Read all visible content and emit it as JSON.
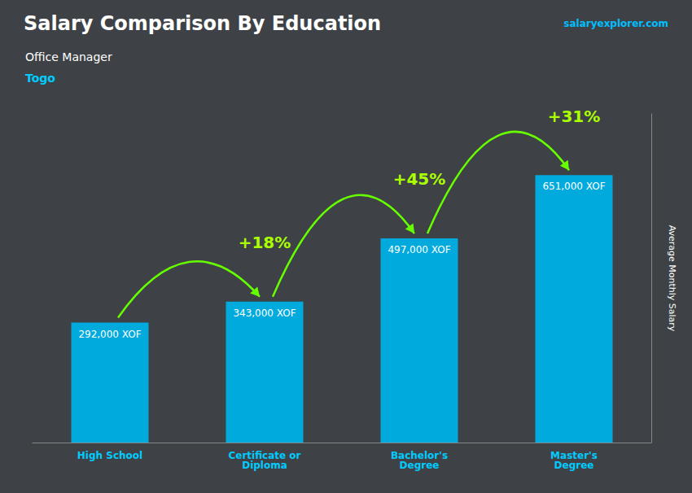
{
  "chart_data": {
    "type": "bar",
    "title": "Salary Comparison By Education",
    "subtitle": [
      "Office Manager",
      "Togo"
    ],
    "source": "salaryexplorer.com",
    "ylabel": "Average Monthly Salary",
    "categories": [
      "High School",
      "Certificate or\nDiploma",
      "Bachelor's\nDegree",
      "Master's\nDegree"
    ],
    "values": [
      292000,
      343000,
      497000,
      651000
    ],
    "value_labels": [
      "292,000 XOF",
      "343,000 XOF",
      "497,000 XOF",
      "651,000 XOF"
    ],
    "data_labels": true,
    "color": "#00AADD",
    "ylim": [
      0,
      800000
    ],
    "grid": false,
    "tick_labels": "x",
    "annotations": [
      "+18%",
      "+45%",
      "+31%"
    ]
  }
}
